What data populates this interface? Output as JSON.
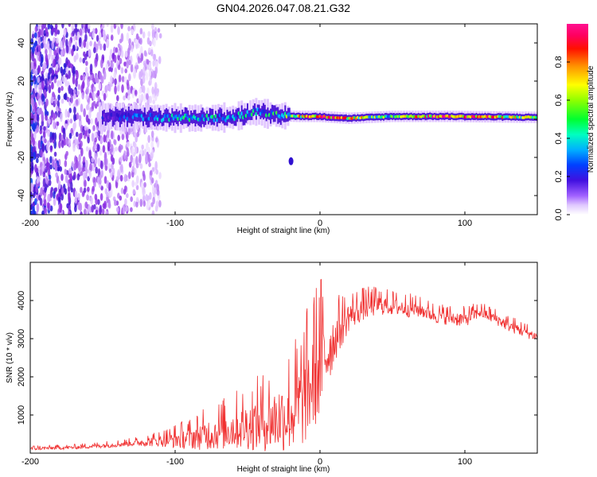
{
  "title": "GN04.2026.047.08.21.G32",
  "colors": {
    "snr_line": "#f03030",
    "axis": "#000000",
    "background": "#ffffff"
  },
  "chart_data": [
    {
      "type": "heatmap",
      "name": "spectrogram",
      "xlabel": "Height of straight line (km)",
      "ylabel": "Frequency (Hz)",
      "xlim": [
        -200,
        150
      ],
      "ylim": [
        -50,
        50
      ],
      "xticks": [
        -200,
        -100,
        0,
        100
      ],
      "yticks": [
        -40,
        -20,
        0,
        20,
        40
      ],
      "colorbar": {
        "label": "Normalized spectral amplitude",
        "range": [
          0,
          1
        ],
        "ticks": [
          "0.0",
          "0.2",
          "0.4",
          "0.6",
          "0.8"
        ],
        "tick_values": [
          0.0,
          0.2,
          0.4,
          0.6,
          0.8
        ],
        "colormap": [
          "#ffffff",
          "#d6b0ff",
          "#8a2be2",
          "#3010d0",
          "#0050ff",
          "#00d0ff",
          "#00ff60",
          "#a0ff00",
          "#ffff00",
          "#ff8000",
          "#ff0000",
          "#ff0070",
          "#ff00a0"
        ]
      },
      "ridge": [
        {
          "x": -150,
          "f": 1.5,
          "amp": 0.25
        },
        {
          "x": -120,
          "f": 1.0,
          "amp": 0.35
        },
        {
          "x": -90,
          "f": 0.5,
          "amp": 0.45
        },
        {
          "x": -60,
          "f": 1.0,
          "amp": 0.4
        },
        {
          "x": -45,
          "f": 4.0,
          "amp": 0.45
        },
        {
          "x": -30,
          "f": 2.0,
          "amp": 0.45
        },
        {
          "x": -15,
          "f": 1.5,
          "amp": 0.7
        },
        {
          "x": 0,
          "f": 1.5,
          "amp": 0.9
        },
        {
          "x": 20,
          "f": 0.5,
          "amp": 0.7
        },
        {
          "x": 50,
          "f": 1.5,
          "amp": 0.5
        },
        {
          "x": 90,
          "f": 1.5,
          "amp": 0.95
        },
        {
          "x": 150,
          "f": 1.0,
          "amp": 0.55
        }
      ],
      "noise_region": {
        "x_from": -200,
        "x_to": -110,
        "f_from": -50,
        "f_to": 50
      },
      "isolated_blob": {
        "x": -20,
        "f": -22,
        "amp": 0.25
      }
    },
    {
      "type": "line",
      "name": "snr",
      "xlabel": "Height of straight line (km)",
      "ylabel": "SNR (10 * v/v)",
      "xlim": [
        -200,
        150
      ],
      "ylim": [
        0,
        5000
      ],
      "xticks": [
        -200,
        -100,
        0,
        100
      ],
      "yticks": [
        1000,
        2000,
        3000,
        4000
      ],
      "envelope": {
        "x": [
          -200,
          -170,
          -150,
          -130,
          -110,
          -100,
          -90,
          -80,
          -70,
          -60,
          -50,
          -40,
          -30,
          -20,
          -15,
          -10,
          -5,
          0,
          10,
          20,
          30,
          40,
          50,
          60,
          70,
          80,
          90,
          100,
          110,
          120,
          130,
          140,
          150
        ],
        "base": [
          120,
          150,
          200,
          260,
          330,
          360,
          400,
          480,
          560,
          650,
          720,
          800,
          900,
          1050,
          1200,
          1500,
          1900,
          2300,
          3000,
          3600,
          3800,
          3900,
          3850,
          3800,
          3750,
          3600,
          3550,
          3500,
          3700,
          3550,
          3350,
          3200,
          3050
        ],
        "amplitude": [
          60,
          60,
          80,
          100,
          200,
          300,
          380,
          500,
          600,
          700,
          800,
          950,
          1100,
          1300,
          1500,
          1600,
          1700,
          1800,
          800,
          500,
          400,
          350,
          300,
          300,
          250,
          250,
          250,
          250,
          200,
          200,
          200,
          200,
          150
        ]
      }
    }
  ]
}
